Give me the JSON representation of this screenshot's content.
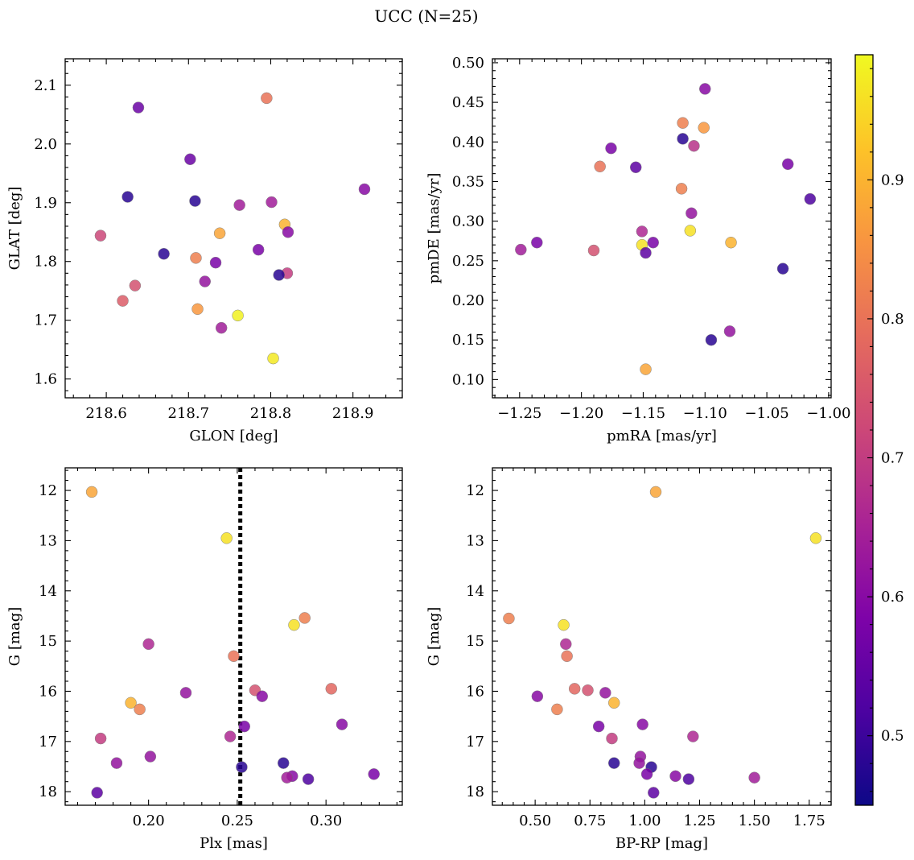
{
  "figure": {
    "title": "UCC (N=25)"
  },
  "colorbar": {
    "range": [
      0.45,
      0.99
    ],
    "ticks": [
      0.5,
      0.6,
      0.7,
      0.8,
      0.9
    ],
    "tick_labels": [
      "0.5",
      "0.6",
      "0.7",
      "0.8",
      "0.9"
    ],
    "colormap": "plasma"
  },
  "chart_data": [
    {
      "type": "scatter",
      "xlabel": "GLON [deg]",
      "ylabel": "GLAT [deg]",
      "xlim": [
        218.55,
        218.96
      ],
      "ylim": [
        1.568,
        2.145
      ],
      "xticks": [
        218.6,
        218.7,
        218.8,
        218.9
      ],
      "xtick_labels": [
        "218.6",
        "218.7",
        "218.8",
        "218.9"
      ],
      "yticks": [
        1.6,
        1.7,
        1.8,
        1.9,
        2.0,
        2.1
      ],
      "ytick_labels": [
        "1.6",
        "1.7",
        "1.8",
        "1.9",
        "2.0",
        "2.1"
      ],
      "points": [
        {
          "x": 218.639,
          "y": 2.062,
          "c": 0.56
        },
        {
          "x": 218.795,
          "y": 2.078,
          "c": 0.8
        },
        {
          "x": 218.702,
          "y": 1.974,
          "c": 0.56
        },
        {
          "x": 218.914,
          "y": 1.923,
          "c": 0.6
        },
        {
          "x": 218.626,
          "y": 1.91,
          "c": 0.48
        },
        {
          "x": 218.708,
          "y": 1.903,
          "c": 0.48
        },
        {
          "x": 218.801,
          "y": 1.901,
          "c": 0.64
        },
        {
          "x": 218.762,
          "y": 1.896,
          "c": 0.64
        },
        {
          "x": 218.817,
          "y": 1.863,
          "c": 0.9
        },
        {
          "x": 218.738,
          "y": 1.848,
          "c": 0.88
        },
        {
          "x": 218.821,
          "y": 1.85,
          "c": 0.6
        },
        {
          "x": 218.593,
          "y": 1.844,
          "c": 0.72
        },
        {
          "x": 218.785,
          "y": 1.82,
          "c": 0.58
        },
        {
          "x": 218.67,
          "y": 1.813,
          "c": 0.48
        },
        {
          "x": 218.709,
          "y": 1.806,
          "c": 0.82
        },
        {
          "x": 218.733,
          "y": 1.798,
          "c": 0.58
        },
        {
          "x": 218.82,
          "y": 1.78,
          "c": 0.7
        },
        {
          "x": 218.81,
          "y": 1.777,
          "c": 0.48
        },
        {
          "x": 218.72,
          "y": 1.766,
          "c": 0.62
        },
        {
          "x": 218.635,
          "y": 1.759,
          "c": 0.74
        },
        {
          "x": 218.62,
          "y": 1.733,
          "c": 0.76
        },
        {
          "x": 218.711,
          "y": 1.719,
          "c": 0.86
        },
        {
          "x": 218.76,
          "y": 1.708,
          "c": 0.98
        },
        {
          "x": 218.74,
          "y": 1.687,
          "c": 0.64
        },
        {
          "x": 218.803,
          "y": 1.635,
          "c": 0.97
        }
      ]
    },
    {
      "type": "scatter",
      "xlabel": "pmRA [mas/yr]",
      "ylabel": "pmDE [mas/yr]",
      "xlim": [
        -1.272,
        -0.998
      ],
      "ylim": [
        0.077,
        0.505
      ],
      "xticks": [
        -1.25,
        -1.2,
        -1.15,
        -1.1,
        -1.05,
        -1.0
      ],
      "xtick_labels": [
        "−1.25",
        "−1.20",
        "−1.15",
        "−1.10",
        "−1.05",
        "−1.00"
      ],
      "yticks": [
        0.1,
        0.15,
        0.2,
        0.25,
        0.3,
        0.35,
        0.4,
        0.45,
        0.5
      ],
      "ytick_labels": [
        "0.10",
        "0.15",
        "0.20",
        "0.25",
        "0.30",
        "0.35",
        "0.40",
        "0.45",
        "0.50"
      ],
      "points": [
        {
          "x": -1.1,
          "y": 0.467,
          "c": 0.6
        },
        {
          "x": -1.118,
          "y": 0.424,
          "c": 0.82
        },
        {
          "x": -1.101,
          "y": 0.418,
          "c": 0.86
        },
        {
          "x": -1.118,
          "y": 0.404,
          "c": 0.48
        },
        {
          "x": -1.109,
          "y": 0.395,
          "c": 0.68
        },
        {
          "x": -1.176,
          "y": 0.392,
          "c": 0.58
        },
        {
          "x": -1.033,
          "y": 0.372,
          "c": 0.58
        },
        {
          "x": -1.185,
          "y": 0.369,
          "c": 0.8
        },
        {
          "x": -1.156,
          "y": 0.368,
          "c": 0.54
        },
        {
          "x": -1.119,
          "y": 0.341,
          "c": 0.82
        },
        {
          "x": -1.015,
          "y": 0.328,
          "c": 0.52
        },
        {
          "x": -1.111,
          "y": 0.31,
          "c": 0.62
        },
        {
          "x": -1.112,
          "y": 0.288,
          "c": 0.96
        },
        {
          "x": -1.151,
          "y": 0.287,
          "c": 0.66
        },
        {
          "x": -1.079,
          "y": 0.273,
          "c": 0.9
        },
        {
          "x": -1.236,
          "y": 0.273,
          "c": 0.58
        },
        {
          "x": -1.142,
          "y": 0.273,
          "c": 0.58
        },
        {
          "x": -1.151,
          "y": 0.27,
          "c": 0.96
        },
        {
          "x": -1.249,
          "y": 0.264,
          "c": 0.64
        },
        {
          "x": -1.19,
          "y": 0.263,
          "c": 0.74
        },
        {
          "x": -1.148,
          "y": 0.26,
          "c": 0.54
        },
        {
          "x": -1.037,
          "y": 0.24,
          "c": 0.48
        },
        {
          "x": -1.08,
          "y": 0.161,
          "c": 0.62
        },
        {
          "x": -1.095,
          "y": 0.15,
          "c": 0.48
        },
        {
          "x": -1.148,
          "y": 0.113,
          "c": 0.88
        }
      ]
    },
    {
      "type": "scatter",
      "xlabel": "Plx [mas]",
      "ylabel": "G [mag]",
      "xlim": [
        0.153,
        0.343
      ],
      "ylim": [
        18.27,
        11.55
      ],
      "y_inverted": true,
      "xticks": [
        0.2,
        0.25,
        0.3
      ],
      "xtick_labels": [
        "0.20",
        "0.25",
        "0.30"
      ],
      "yticks": [
        12,
        13,
        14,
        15,
        16,
        17,
        18
      ],
      "ytick_labels": [
        "12",
        "13",
        "14",
        "15",
        "16",
        "17",
        "18"
      ],
      "vline": {
        "x": 0.2517,
        "style": "dotted"
      },
      "points": [
        {
          "x": 0.168,
          "y": 12.03,
          "c": 0.88
        },
        {
          "x": 0.244,
          "y": 12.95,
          "c": 0.96
        },
        {
          "x": 0.288,
          "y": 14.54,
          "c": 0.82
        },
        {
          "x": 0.282,
          "y": 14.68,
          "c": 0.96
        },
        {
          "x": 0.2,
          "y": 15.06,
          "c": 0.66
        },
        {
          "x": 0.248,
          "y": 15.3,
          "c": 0.8
        },
        {
          "x": 0.26,
          "y": 15.98,
          "c": 0.74
        },
        {
          "x": 0.303,
          "y": 15.95,
          "c": 0.78
        },
        {
          "x": 0.221,
          "y": 16.03,
          "c": 0.62
        },
        {
          "x": 0.264,
          "y": 16.1,
          "c": 0.6
        },
        {
          "x": 0.19,
          "y": 16.23,
          "c": 0.9
        },
        {
          "x": 0.195,
          "y": 16.36,
          "c": 0.82
        },
        {
          "x": 0.254,
          "y": 16.7,
          "c": 0.58
        },
        {
          "x": 0.309,
          "y": 16.66,
          "c": 0.6
        },
        {
          "x": 0.173,
          "y": 16.94,
          "c": 0.7
        },
        {
          "x": 0.246,
          "y": 16.9,
          "c": 0.66
        },
        {
          "x": 0.201,
          "y": 17.3,
          "c": 0.62
        },
        {
          "x": 0.182,
          "y": 17.43,
          "c": 0.62
        },
        {
          "x": 0.276,
          "y": 17.43,
          "c": 0.48
        },
        {
          "x": 0.2525,
          "y": 17.51,
          "c": 0.48
        },
        {
          "x": 0.327,
          "y": 17.65,
          "c": 0.58
        },
        {
          "x": 0.281,
          "y": 17.69,
          "c": 0.6
        },
        {
          "x": 0.278,
          "y": 17.72,
          "c": 0.64
        },
        {
          "x": 0.29,
          "y": 17.75,
          "c": 0.52
        },
        {
          "x": 0.171,
          "y": 18.02,
          "c": 0.54
        }
      ]
    },
    {
      "type": "scatter",
      "xlabel": "BP-RP [mag]",
      "ylabel": "G [mag]",
      "xlim": [
        0.305,
        1.85
      ],
      "ylim": [
        18.27,
        11.55
      ],
      "y_inverted": true,
      "xticks": [
        0.5,
        0.75,
        1.0,
        1.25,
        1.5,
        1.75
      ],
      "xtick_labels": [
        "0.50",
        "0.75",
        "1.00",
        "1.25",
        "1.50",
        "1.75"
      ],
      "yticks": [
        12,
        13,
        14,
        15,
        16,
        17,
        18
      ],
      "ytick_labels": [
        "12",
        "13",
        "14",
        "15",
        "16",
        "17",
        "18"
      ],
      "points": [
        {
          "x": 1.05,
          "y": 12.03,
          "c": 0.88
        },
        {
          "x": 1.78,
          "y": 12.95,
          "c": 0.96
        },
        {
          "x": 0.38,
          "y": 14.55,
          "c": 0.82
        },
        {
          "x": 0.63,
          "y": 14.68,
          "c": 0.96
        },
        {
          "x": 0.64,
          "y": 15.06,
          "c": 0.66
        },
        {
          "x": 0.645,
          "y": 15.3,
          "c": 0.8
        },
        {
          "x": 0.68,
          "y": 15.95,
          "c": 0.78
        },
        {
          "x": 0.74,
          "y": 15.98,
          "c": 0.74
        },
        {
          "x": 0.82,
          "y": 16.03,
          "c": 0.62
        },
        {
          "x": 0.51,
          "y": 16.1,
          "c": 0.6
        },
        {
          "x": 0.86,
          "y": 16.23,
          "c": 0.9
        },
        {
          "x": 0.6,
          "y": 16.36,
          "c": 0.82
        },
        {
          "x": 0.79,
          "y": 16.7,
          "c": 0.58
        },
        {
          "x": 0.99,
          "y": 16.66,
          "c": 0.6
        },
        {
          "x": 0.85,
          "y": 16.94,
          "c": 0.7
        },
        {
          "x": 1.22,
          "y": 16.9,
          "c": 0.66
        },
        {
          "x": 0.98,
          "y": 17.3,
          "c": 0.62
        },
        {
          "x": 0.975,
          "y": 17.43,
          "c": 0.62
        },
        {
          "x": 0.86,
          "y": 17.43,
          "c": 0.48
        },
        {
          "x": 1.03,
          "y": 17.51,
          "c": 0.48
        },
        {
          "x": 1.01,
          "y": 17.65,
          "c": 0.58
        },
        {
          "x": 1.14,
          "y": 17.69,
          "c": 0.6
        },
        {
          "x": 1.5,
          "y": 17.72,
          "c": 0.64
        },
        {
          "x": 1.2,
          "y": 17.75,
          "c": 0.52
        },
        {
          "x": 1.04,
          "y": 18.02,
          "c": 0.54
        }
      ]
    }
  ]
}
